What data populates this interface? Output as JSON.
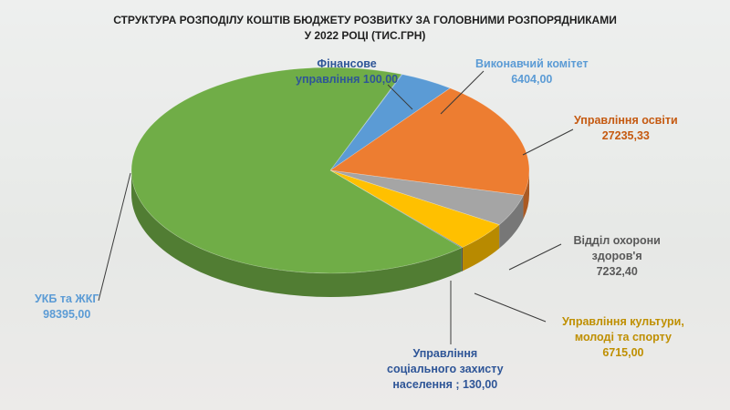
{
  "title_line1": "СТРУКТУРА РОЗПОДІЛУ КОШТІВ БЮДЖЕТУ РОЗВИТКУ ЗА ГОЛОВНИМИ РОЗПОРЯДНИКАМИ",
  "title_line2": "У 2022 РОЦІ (ТИС.ГРН)",
  "chart_data": {
    "type": "pie",
    "title": "СТРУКТУРА РОЗПОДІЛУ КОШТІВ БЮДЖЕТУ РОЗВИТКУ ЗА ГОЛОВНИМИ РОЗПОРЯДНИКАМИ У 2022 РОЦІ (ТИС.ГРН)",
    "categories": [
      "Фінансове управління",
      "Виконавчий комітет",
      "Управління освіти",
      "Відділ охорони здоров'я",
      "Управління культури, молоді та спорту",
      "Управління соціального захисту населення",
      "УКБ та ЖКГ"
    ],
    "values": [
      100.0,
      6404.0,
      27235.33,
      7232.4,
      6715.0,
      130.0,
      98395.0
    ],
    "colors": [
      "#4472c4",
      "#5b9bd5",
      "#ed7d31",
      "#a5a5a5",
      "#ffc000",
      "#264478",
      "#70ad47"
    ],
    "legend": "none",
    "style": "3d"
  },
  "labels": [
    {
      "lines": [
        "Фінансове",
        "управління 100,00"
      ],
      "color": "#2e5597"
    },
    {
      "lines": [
        "Виконавчий комітет",
        "6404,00"
      ],
      "color": "#5b9bd5"
    },
    {
      "lines": [
        "Управління освіти",
        "27235,33"
      ],
      "color": "#c55a11"
    },
    {
      "lines": [
        "Відділ охорони",
        "здоров'я",
        "7232,40"
      ],
      "color": "#595959"
    },
    {
      "lines": [
        "Управління культури,",
        "молоді та спорту",
        "6715,00"
      ],
      "color": "#bf8f00"
    },
    {
      "lines": [
        "Управління",
        "соціального захисту",
        "населення ; 130,00"
      ],
      "color": "#2e5597"
    },
    {
      "lines": [
        "УКБ та ЖКГ",
        "98395,00"
      ],
      "color": "#5b9bd5"
    }
  ]
}
